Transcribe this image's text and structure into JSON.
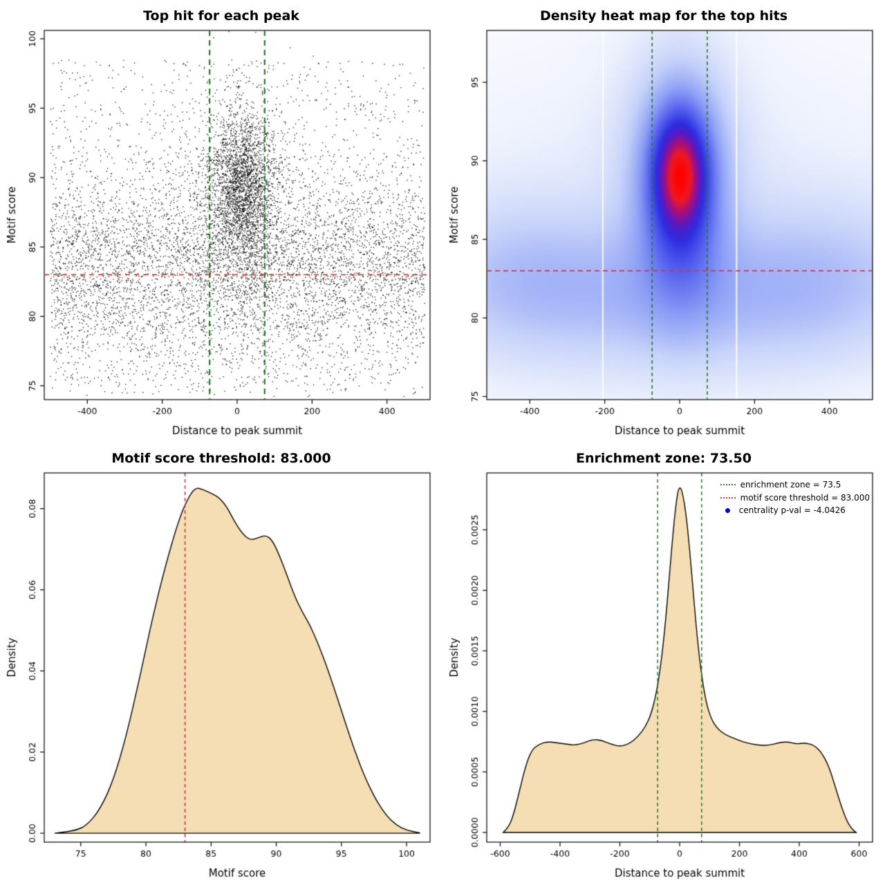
{
  "chart_data": [
    {
      "id": "scatter",
      "type": "scatter",
      "title": "Top hit for each peak",
      "xlabel": "Distance to peak summit",
      "ylabel": "Motif score",
      "xlim": [
        -515,
        515
      ],
      "ylim": [
        74.0,
        100.6
      ],
      "xticks": [
        -400,
        -200,
        0,
        200,
        400
      ],
      "xticklabels": [
        "-400",
        "-200",
        "0",
        "200",
        "400"
      ],
      "yticks": [
        75,
        80,
        85,
        90,
        95,
        100
      ],
      "yticklabels": [
        "75",
        "80",
        "85",
        "90",
        "95",
        "100"
      ],
      "point_color": "#000000",
      "seed": 1337,
      "background": {
        "n": 6500,
        "x_min": -500,
        "x_max": 500,
        "y_mean": 83.5,
        "y_sd": 3.5,
        "uniform_frac": 0.25,
        "y_min": 74.5,
        "y_max": 98.5
      },
      "clusters": [
        {
          "n": 1800,
          "x_mean": 12,
          "x_sd": 40,
          "y_mean": 89.5,
          "y_sd": 2.6
        },
        {
          "n": 1300,
          "x_mean": 8,
          "x_sd": 75,
          "y_mean": 88.0,
          "y_sd": 4.2
        }
      ],
      "vlines": [
        {
          "x": -73.5,
          "color": "#1e7a1e",
          "width": 2.2,
          "dash": [
            8,
            6
          ]
        },
        {
          "x": 73.5,
          "color": "#1e7a1e",
          "width": 2.2,
          "dash": [
            8,
            6
          ]
        }
      ],
      "hlines": [
        {
          "y": 83,
          "color": "#e03131",
          "width": 1.7,
          "dash": [
            7,
            6
          ]
        }
      ]
    },
    {
      "id": "heatmap",
      "type": "heatmap",
      "title": "Density heat map for the top hits",
      "xlabel": "Distance to peak summit",
      "ylabel": "Motif score",
      "xlim": [
        -515,
        515
      ],
      "ylim": [
        74.8,
        98.3
      ],
      "xticks": [
        -400,
        -200,
        0,
        200,
        400
      ],
      "xticklabels": [
        "-400",
        "-200",
        "0",
        "200",
        "400"
      ],
      "yticks": [
        75,
        80,
        85,
        90,
        95
      ],
      "yticklabels": [
        "75",
        "80",
        "85",
        "90",
        "95"
      ],
      "gamma": 0.6,
      "components": [
        {
          "cx": 0,
          "cy": 89.3,
          "sx": 45,
          "sy": 2.4,
          "a": 1.0
        },
        {
          "cx": 2,
          "cy": 89.0,
          "sx": 70,
          "sy": 3.6,
          "a": 0.85
        },
        {
          "cx": 5,
          "cy": 87.2,
          "sx": 70,
          "sy": 4.6,
          "a": 0.45
        },
        {
          "cx": 0,
          "cy": 90.3,
          "sx": 120,
          "sy": 5.2,
          "a": 0.22
        },
        {
          "cx": 0,
          "cy": 82.3,
          "sx": 520,
          "sy": 3.0,
          "a": 0.3
        },
        {
          "cx": -430,
          "cy": 82.6,
          "sx": 140,
          "sy": 3.5,
          "a": 0.17
        },
        {
          "cx": 390,
          "cy": 83.0,
          "sx": 160,
          "sy": 3.3,
          "a": 0.14
        },
        {
          "cx": -140,
          "cy": 80.3,
          "sx": 210,
          "sy": 2.8,
          "a": 0.11
        },
        {
          "cx": 210,
          "cy": 79.6,
          "sx": 240,
          "sy": 2.6,
          "a": 0.1
        },
        {
          "cx": 0,
          "cy": 85.5,
          "sx": 560,
          "sy": 7.5,
          "a": 0.1
        }
      ],
      "colormap": [
        {
          "t": 0.0,
          "c": [
            255,
            255,
            255
          ]
        },
        {
          "t": 0.12,
          "c": [
            235,
            240,
            253
          ]
        },
        {
          "t": 0.28,
          "c": [
            198,
            210,
            250
          ]
        },
        {
          "t": 0.45,
          "c": [
            140,
            158,
            246
          ]
        },
        {
          "t": 0.6,
          "c": [
            82,
            96,
            238
          ]
        },
        {
          "t": 0.72,
          "c": [
            45,
            45,
            225
          ]
        },
        {
          "t": 0.8,
          "c": [
            90,
            25,
            195
          ]
        },
        {
          "t": 0.88,
          "c": [
            170,
            15,
            120
          ]
        },
        {
          "t": 0.94,
          "c": [
            240,
            25,
            35
          ]
        },
        {
          "t": 1.0,
          "c": [
            255,
            0,
            0
          ]
        }
      ],
      "white_streaks": [
        -205,
        152
      ],
      "vlines": [
        {
          "x": -73.5,
          "color": "#1e7a1e",
          "width": 1.6,
          "dash": [
            5,
            4
          ]
        },
        {
          "x": 73.5,
          "color": "#1e7a1e",
          "width": 1.6,
          "dash": [
            5,
            4
          ]
        }
      ],
      "hlines": [
        {
          "y": 83,
          "color": "#e03131",
          "width": 1.6,
          "dash": [
            7,
            5
          ]
        }
      ]
    },
    {
      "id": "motif-density",
      "type": "density",
      "title": "Motif score threshold: 83.000",
      "xlabel": "Motif score",
      "ylabel": "Density",
      "xlim": [
        72.2,
        101.8
      ],
      "ylim": [
        -0.0022,
        0.0888
      ],
      "xticks": [
        75,
        80,
        85,
        90,
        95,
        100
      ],
      "xticklabels": [
        "75",
        "80",
        "85",
        "90",
        "95",
        "100"
      ],
      "yticks": [
        0,
        0.02,
        0.04,
        0.06,
        0.08
      ],
      "yticklabels": [
        "0.00",
        "0.02",
        "0.04",
        "0.06",
        "0.08"
      ],
      "fill": "#f5deb3",
      "points": [
        [
          73,
          0
        ],
        [
          74.5,
          0.0005
        ],
        [
          75.5,
          0.002
        ],
        [
          76.5,
          0.006
        ],
        [
          77.5,
          0.013
        ],
        [
          78.5,
          0.024
        ],
        [
          79.5,
          0.038
        ],
        [
          80.5,
          0.053
        ],
        [
          81.5,
          0.066
        ],
        [
          82.5,
          0.077
        ],
        [
          83.2,
          0.0825
        ],
        [
          83.8,
          0.0852
        ],
        [
          84.3,
          0.0848
        ],
        [
          85,
          0.0838
        ],
        [
          85.6,
          0.0828
        ],
        [
          86.2,
          0.0805
        ],
        [
          86.8,
          0.0768
        ],
        [
          87.4,
          0.0738
        ],
        [
          88,
          0.0722
        ],
        [
          88.6,
          0.0728
        ],
        [
          89.2,
          0.0735
        ],
        [
          89.7,
          0.0722
        ],
        [
          90.2,
          0.0688
        ],
        [
          90.8,
          0.0638
        ],
        [
          91.4,
          0.0585
        ],
        [
          92,
          0.0545
        ],
        [
          92.6,
          0.0512
        ],
        [
          93.2,
          0.0468
        ],
        [
          93.8,
          0.0418
        ],
        [
          94.5,
          0.0352
        ],
        [
          95.2,
          0.0282
        ],
        [
          96,
          0.0205
        ],
        [
          96.8,
          0.0138
        ],
        [
          97.6,
          0.0085
        ],
        [
          98.4,
          0.0045
        ],
        [
          99.2,
          0.002
        ],
        [
          100,
          0.0007
        ],
        [
          101,
          0.0001
        ]
      ],
      "vlines": [
        {
          "x": 83,
          "color": "#cc3333",
          "width": 1.6,
          "dash": [
            5,
            4
          ]
        }
      ],
      "hlines": []
    },
    {
      "id": "distance-density",
      "type": "density",
      "title": "Enrichment zone: 73.50",
      "xlabel": "Distance to peak summit",
      "ylabel": "Density",
      "xlim": [
        -645,
        645
      ],
      "ylim": [
        -8e-05,
        0.00297
      ],
      "xticks": [
        -600,
        -400,
        -200,
        0,
        200,
        400,
        600
      ],
      "xticklabels": [
        "-600",
        "-400",
        "-200",
        "0",
        "200",
        "400",
        "600"
      ],
      "yticks": [
        0,
        0.0005,
        0.001,
        0.0015,
        0.002,
        0.0025
      ],
      "yticklabels": [
        "0.0000",
        "0.0005",
        "0.0010",
        "0.0015",
        "0.0020",
        "0.0025"
      ],
      "fill": "#f5deb3",
      "points": [
        [
          -590,
          0
        ],
        [
          -572,
          4e-05
        ],
        [
          -555,
          0.00015
        ],
        [
          -535,
          0.00035
        ],
        [
          -515,
          0.00055
        ],
        [
          -495,
          0.00068
        ],
        [
          -470,
          0.00073
        ],
        [
          -440,
          0.00075
        ],
        [
          -410,
          0.00074
        ],
        [
          -380,
          0.00073
        ],
        [
          -350,
          0.00072
        ],
        [
          -320,
          0.00074
        ],
        [
          -290,
          0.00077
        ],
        [
          -260,
          0.00076
        ],
        [
          -230,
          0.00073
        ],
        [
          -200,
          0.00071
        ],
        [
          -170,
          0.00073
        ],
        [
          -140,
          0.00079
        ],
        [
          -115,
          0.00087
        ],
        [
          -95,
          0.00098
        ],
        [
          -78,
          0.00115
        ],
        [
          -62,
          0.0014
        ],
        [
          -48,
          0.00172
        ],
        [
          -35,
          0.0021
        ],
        [
          -22,
          0.00248
        ],
        [
          -12,
          0.00272
        ],
        [
          -4,
          0.00284
        ],
        [
          3,
          0.00285
        ],
        [
          10,
          0.0028
        ],
        [
          20,
          0.00266
        ],
        [
          32,
          0.00238
        ],
        [
          45,
          0.002
        ],
        [
          58,
          0.00163
        ],
        [
          72,
          0.00132
        ],
        [
          88,
          0.00108
        ],
        [
          105,
          0.00094
        ],
        [
          125,
          0.00086
        ],
        [
          150,
          0.00081
        ],
        [
          180,
          0.00078
        ],
        [
          210,
          0.00075
        ],
        [
          240,
          0.00073
        ],
        [
          270,
          0.00072
        ],
        [
          300,
          0.00072
        ],
        [
          330,
          0.00074
        ],
        [
          360,
          0.00075
        ],
        [
          390,
          0.00073
        ],
        [
          420,
          0.00074
        ],
        [
          450,
          0.00072
        ],
        [
          475,
          0.00066
        ],
        [
          500,
          0.00054
        ],
        [
          520,
          0.00038
        ],
        [
          540,
          0.00022
        ],
        [
          558,
          0.0001
        ],
        [
          575,
          3e-05
        ],
        [
          590,
          0
        ]
      ],
      "vlines": [
        {
          "x": -73.5,
          "color": "#2e7d2e",
          "width": 1.6,
          "dash": [
            5,
            4
          ]
        },
        {
          "x": 73.5,
          "color": "#2e7d2e",
          "width": 1.6,
          "dash": [
            5,
            4
          ]
        }
      ],
      "hlines": [],
      "legend": [
        {
          "label": "enrichment zone = 73.5",
          "color": "#2e7d2e",
          "swatch": "dotted-line"
        },
        {
          "label": "motif score threshold = 83.000",
          "color": "#cc3333",
          "swatch": "dotted-line"
        },
        {
          "label": "centrality p-val = -4.0426",
          "color": "#0000cc",
          "swatch": "dot"
        }
      ]
    }
  ]
}
